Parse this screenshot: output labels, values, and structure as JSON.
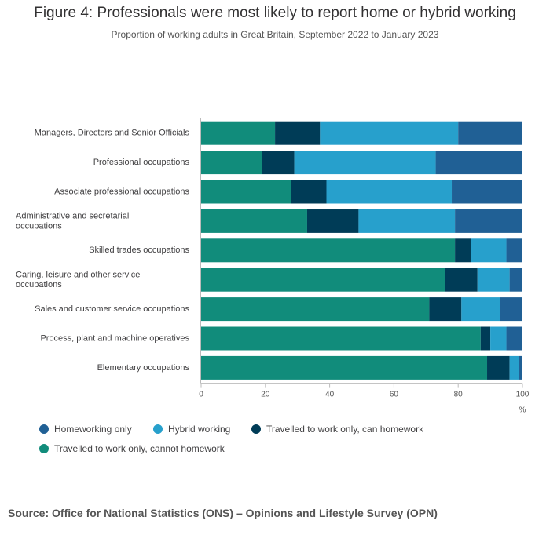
{
  "title": "Figure 4: Professionals were most likely to report home or hybrid working",
  "subtitle": "Proportion of working adults in Great Britain, September 2022 to January 2023",
  "source": "Source: Office for National Statistics (ONS) – Opinions and Lifestyle Survey (OPN)",
  "chart_data": {
    "type": "bar",
    "orientation": "horizontal",
    "stacked": true,
    "categories": [
      "Managers, Directors and Senior Officials",
      "Professional occupations",
      "Associate professional occupations",
      "Administrative and secretarial occupations",
      "Skilled trades occupations",
      "Caring, leisure and other service occupations",
      "Sales and customer service occupations",
      "Process, plant and machine operatives",
      "Elementary occupations"
    ],
    "series": [
      {
        "name": "Travelled to work only, cannot homework",
        "color": "#118c7b",
        "values": [
          23,
          19,
          28,
          33,
          79,
          76,
          71,
          87,
          89
        ]
      },
      {
        "name": "Travelled to work only, can homework",
        "color": "#003c57",
        "values": [
          14,
          10,
          11,
          16,
          5,
          10,
          10,
          3,
          7
        ]
      },
      {
        "name": "Hybrid working",
        "color": "#27a0cc",
        "values": [
          43,
          44,
          39,
          30,
          11,
          10,
          12,
          5,
          3
        ]
      },
      {
        "name": "Homeworking only",
        "color": "#206095",
        "values": [
          20,
          27,
          22,
          21,
          5,
          4,
          7,
          5,
          1
        ]
      }
    ],
    "xlabel": "%",
    "ylabel": "",
    "xlim": [
      0,
      100
    ],
    "xticks": [
      "0",
      "20",
      "40",
      "60",
      "80",
      "100"
    ],
    "grid": false,
    "legend_position": "bottom",
    "legend_order": [
      "Homeworking only",
      "Hybrid working",
      "Travelled to work only, can homework",
      "Travelled to work only, cannot homework"
    ]
  }
}
